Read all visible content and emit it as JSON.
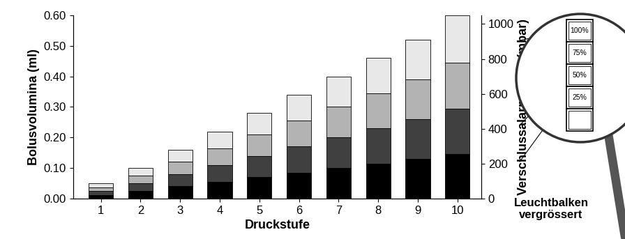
{
  "chart_data": {
    "type": "bar",
    "stacked": true,
    "x_label": "Druckstufe",
    "y_label": "Bolusvolumina (ml)",
    "y2_label": "Verschlussalarmdruck (mbar)",
    "categories": [
      "1",
      "2",
      "3",
      "4",
      "5",
      "6",
      "7",
      "8",
      "9",
      "10"
    ],
    "series": [
      {
        "color": "#000000",
        "values": [
          0.0125,
          0.025,
          0.04,
          0.055,
          0.07,
          0.085,
          0.1,
          0.115,
          0.13,
          0.145
        ]
      },
      {
        "color": "#404040",
        "values": [
          0.0125,
          0.025,
          0.04,
          0.055,
          0.07,
          0.085,
          0.1,
          0.115,
          0.13,
          0.15
        ]
      },
      {
        "color": "#b3b3b3",
        "values": [
          0.0125,
          0.025,
          0.04,
          0.055,
          0.07,
          0.085,
          0.1,
          0.115,
          0.13,
          0.15
        ]
      },
      {
        "color": "#e8e8e8",
        "values": [
          0.0125,
          0.025,
          0.04,
          0.055,
          0.07,
          0.085,
          0.1,
          0.115,
          0.13,
          0.155
        ]
      }
    ],
    "ylim": [
      0,
      0.6
    ],
    "yticks": [
      {
        "value": 0,
        "label": "0.00"
      },
      {
        "value": 0.1,
        "label": "0.10"
      },
      {
        "value": 0.2,
        "label": "0.20"
      },
      {
        "value": 0.3,
        "label": "0.30"
      },
      {
        "value": 0.4,
        "label": "0.40"
      },
      {
        "value": 0.5,
        "label": "0.50"
      },
      {
        "value": 0.6,
        "label": "0.60"
      }
    ],
    "y2lim": [
      0,
      1050
    ],
    "y2ticks": [
      0,
      200,
      400,
      600,
      800,
      1000
    ],
    "inset": {
      "title": "Leuchtbalken\nvergrössert",
      "labels": [
        "100%",
        "75%",
        "50%",
        "25%"
      ]
    }
  }
}
